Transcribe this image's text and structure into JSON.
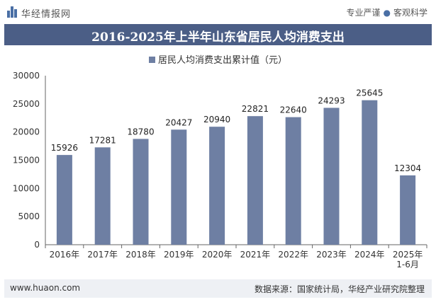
{
  "header": {
    "brand": "华经情报网",
    "slogan_left": "专业严谨",
    "slogan_right": "客观科学"
  },
  "footer": {
    "website": "www.huaon.com",
    "source": "数据来源：国家统计局，华经产业研究院整理"
  },
  "colors": {
    "bar": "#6e7fa3",
    "title_bg": "#4b5e86"
  },
  "chart_data": {
    "type": "bar",
    "title": "2016-2025年上半年山东省居民人均消费支出",
    "categories": [
      "2016年",
      "2017年",
      "2018年",
      "2019年",
      "2020年",
      "2021年",
      "2022年",
      "2023年",
      "2024年",
      "2025年\n1-6月"
    ],
    "series": [
      {
        "name": "居民人均消费支出累计值（元）",
        "values": [
          15926,
          17281,
          18780,
          20427,
          20940,
          22821,
          22640,
          24293,
          25645,
          12304
        ]
      }
    ],
    "xlabel": "",
    "ylabel": "",
    "ylim": [
      0,
      30000
    ],
    "yticks": [
      0,
      5000,
      10000,
      15000,
      20000,
      25000,
      30000
    ],
    "grid": false,
    "legend": "top-center"
  }
}
